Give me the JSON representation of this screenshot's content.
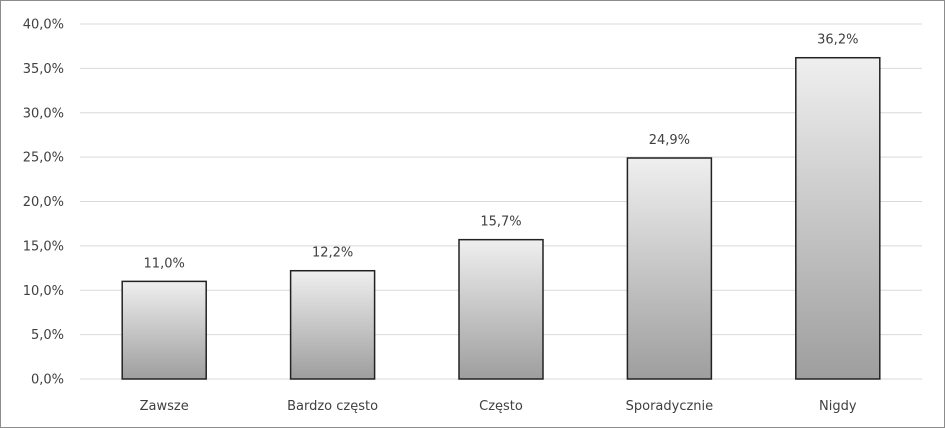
{
  "chart_data": {
    "type": "bar",
    "categories": [
      "Zawsze",
      "Bardzo często",
      "Często",
      "Sporadycznie",
      "Nigdy"
    ],
    "values": [
      11.0,
      12.2,
      15.7,
      24.9,
      36.2
    ],
    "value_labels": [
      "11,0%",
      "12,2%",
      "15,7%",
      "24,9%",
      "36,2%"
    ],
    "yticks": [
      "0,0%",
      "5,0%",
      "10,0%",
      "15,0%",
      "20,0%",
      "25,0%",
      "30,0%",
      "35,0%",
      "40,0%"
    ],
    "ylim": [
      0,
      40
    ],
    "grid": true,
    "legend": "none",
    "title": "",
    "xlabel": "",
    "ylabel": "",
    "colors": {
      "bar_top": "#efefef",
      "bar_bottom": "#9e9e9e",
      "bar_border": "#222222",
      "grid": "#d9d9d9",
      "text": "#404040"
    }
  }
}
